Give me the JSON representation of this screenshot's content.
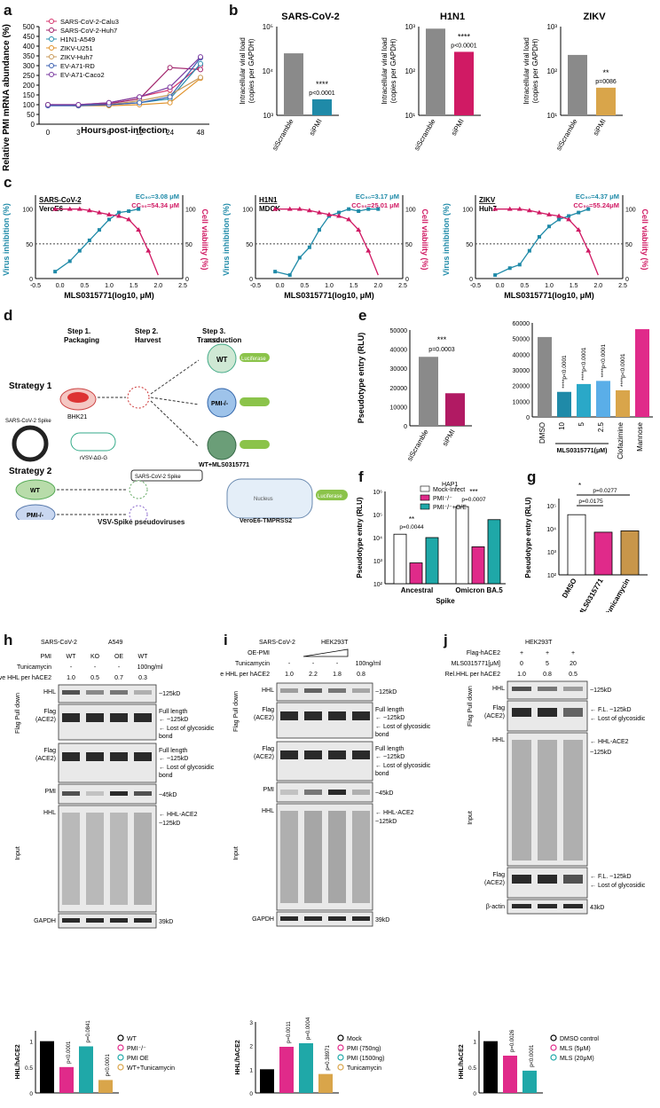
{
  "panels": {
    "a": {
      "label": "a",
      "ylabel": "Relative PMI mRNA abundance (%)",
      "xlabel": "Hours post-infection",
      "xticks": [
        "0",
        "3",
        "6",
        "12",
        "24",
        "48"
      ],
      "yticks": [
        "0",
        "50",
        "100",
        "150",
        "200",
        "250",
        "300",
        "350",
        "400",
        "450",
        "500"
      ],
      "legend": [
        "SARS-CoV-2-Calu3",
        "SARS-CoV-2-Huh7",
        "H1N1-A549",
        "ZIKV-U251",
        "ZIKV-Huh7",
        "EV-A71-RD",
        "EV-A71-Caco2"
      ]
    },
    "b": {
      "label": "b",
      "charts": [
        {
          "title": "SARS-CoV-2",
          "ylabel1": "Intracellular viral load",
          "ylabel2": "(copies per GAPDH)",
          "yticks": [
            "10³",
            "10⁴",
            "10⁵"
          ],
          "cats": [
            "siScramble",
            "siPMI"
          ],
          "stars": "****",
          "p": "p<0.0001"
        },
        {
          "title": "H1N1",
          "ylabel1": "Intracellular viral load",
          "ylabel2": "(copies per GAPDH)",
          "yticks": [
            "10¹",
            "10²",
            "10³"
          ],
          "cats": [
            "siScramble",
            "siPMI"
          ],
          "stars": "****",
          "p": "p<0.0001"
        },
        {
          "title": "ZIKV",
          "ylabel1": "Intracellular viral load",
          "ylabel2": "(copies per GAPDH)",
          "yticks": [
            "10¹",
            "10²",
            "10³"
          ],
          "cats": [
            "siScramble",
            "siPMI"
          ],
          "stars": "**",
          "p": "p=0086"
        }
      ]
    },
    "c": {
      "label": "c",
      "xlabel": "MLS0315771(log10, μM)",
      "yleft": "Virus inhibition (%)",
      "yright": "Cell viability (%)",
      "xticks": [
        "-0.5",
        "0.0",
        "0.5",
        "1.0",
        "1.5",
        "2.0",
        "2.5"
      ],
      "yticks": [
        "0",
        "50",
        "100"
      ],
      "charts": [
        {
          "virus": "SARS-CoV-2",
          "cell": "VeroE6",
          "ec": "EC₅₀=3.08 μM",
          "cc": "CC₅₀=54.34 μM"
        },
        {
          "virus": "H1N1",
          "cell": "MDCK",
          "ec": "EC₅₀=3.17 μM",
          "cc": "CC₅₀=25.01 μM"
        },
        {
          "virus": "ZIKV",
          "cell": "Huh7",
          "ec": "EC₅₀=4.37 μM",
          "cc": "CC₅₀=55.24μM"
        }
      ]
    },
    "d": {
      "label": "d",
      "step1": "Step 1.",
      "step1b": "Packaging",
      "step2": "Step 2.",
      "step2b": "Harvest",
      "step3": "Step 3.",
      "step3b": "Transduction",
      "strategy1": "Strategy 1",
      "strategy2": "Strategy 2",
      "bhk": "BHK21",
      "spike": "SARS-CoV-2 Spike",
      "rvsv": "rVSV-ΔG-G",
      "ace2": "ACE2",
      "luc": "Luciferase",
      "wt": "WT",
      "pmi": "PMI-/-",
      "wtmls": "WT+MLS0315771",
      "spike2": "SARS-CoV-2 Spike",
      "vsv": "VSV-Spike pseudoviruses",
      "nucleus": "Nucleus",
      "vero": "VeroE6-TMPRSS2"
    },
    "e": {
      "label": "e",
      "ylabel": "Pseudotype entry (RLU)",
      "yticks1": [
        "0",
        "10000",
        "20000",
        "30000",
        "40000",
        "50000"
      ],
      "cats1": [
        "siScramble",
        "siPMI"
      ],
      "stars1": "***",
      "p1": "p=0.0003",
      "yticks2": [
        "0",
        "10000",
        "20000",
        "30000",
        "40000",
        "50000",
        "60000"
      ],
      "cats2": [
        "DMSO",
        "10",
        "5",
        "2.5",
        "Clofazimine",
        "Mannose"
      ],
      "group": "MLS0315771(μM)",
      "annots": [
        "****p<0.0001",
        "****p<0.0001",
        "****p<0.0001",
        "****p<0.0001"
      ]
    },
    "f": {
      "label": "f",
      "ylabel": "Pseudotype entry (RLU)",
      "xlabel": "Spike",
      "yticks": [
        "10²",
        "10³",
        "10⁴",
        "10⁵",
        "10⁶"
      ],
      "cats": [
        "Ancestral",
        "Omicron BA.5"
      ],
      "legend_title": "HAP1",
      "legend": [
        "Mock-Infect",
        "PMI⁻/⁻",
        "PMI⁻/⁻+O/E"
      ],
      "p1": "p=0.0044",
      "s1": "**",
      "p2": "p=0.0007",
      "s2": "***"
    },
    "g": {
      "label": "g",
      "ylabel": "Pseudotype entry (RLU)",
      "yticks": [
        "10²",
        "10³",
        "10⁴",
        "10⁵"
      ],
      "cats": [
        "DMSO",
        "MLS0315771",
        "Tunicamycin"
      ],
      "p1": "p=0.0175",
      "p2": "p=0.0277",
      "s": "*"
    },
    "h": {
      "label": "h",
      "virus": "SARS-CoV-2",
      "cellline": "A549",
      "row_pmi": "PMI",
      "row_tun": "Tunicamycin",
      "row_rel": "Relative HHL per hACE2",
      "cols_pmi": [
        "WT",
        "KO",
        "OE",
        "WT"
      ],
      "cols_tun": [
        "-",
        "-",
        "-",
        "100ng/ml"
      ],
      "rel": [
        "1.0",
        "0.5",
        "0.7",
        "0.3"
      ],
      "pulldown": "Flag Pull down",
      "input": "Input",
      "hhl": "HHL",
      "flag": "Flag (ACE2)",
      "pmi": "PMI",
      "gapdh": "GAPDH",
      "kd125": "~125kD",
      "full": "Full length",
      "lost1": "Lost of glycosidic",
      "bond": "bond",
      "kd45": "~45kD",
      "hhlace2": "HHL-ACE2",
      "kd39": "39kD",
      "bar_ylabel": "HHL/hACE2",
      "bar_legend": [
        "WT",
        "PMI⁻/⁻",
        "PMI OE",
        "WT+Tunicamycin"
      ],
      "bar_annots": [
        "p<0.0001",
        "p=0.0841",
        "p<0.0001"
      ]
    },
    "i": {
      "label": "i",
      "virus": "SARS-CoV-2",
      "cellline": "HEK293T",
      "row_oe": "OE-PMI",
      "row_tun": "Tunicamycin",
      "row_rel": "Relative HHL per hACE2",
      "cols_tun": [
        "-",
        "-",
        "-",
        "100ng/ml"
      ],
      "rel": [
        "1.0",
        "2.2",
        "1.8",
        "0.8"
      ],
      "pulldown": "Flag Pull down",
      "input": "Input",
      "hhl": "HHL",
      "flag": "Flag (ACE2)",
      "pmi": "PMI",
      "gapdh": "GAPDH",
      "kd125": "~125kD",
      "full": "Full length",
      "lost1": "Lost of glycosidic",
      "bond": "bond",
      "kd45": "~45kD",
      "hhlace2": "HHL-ACE2",
      "kd39": "39kD",
      "bar_ylabel": "HHL/hACE2",
      "bar_legend": [
        "Mock",
        "PMI (750ng)",
        "PMI (1500ng)",
        "Tunicamycin"
      ],
      "bar_annots": [
        "p=0.0011",
        "p=0.0004",
        "p=0.38971"
      ]
    },
    "j": {
      "label": "j",
      "cellline": "HEK293T",
      "row_flag": "Flag-hACE2",
      "row_mls": "MLS0315771[μM]",
      "row_rel": "Rel.HHL per hACE2",
      "cols_flag": [
        "+",
        "+",
        "+"
      ],
      "cols_mls": [
        "0",
        "5",
        "20"
      ],
      "rel": [
        "1.0",
        "0.8",
        "0.5"
      ],
      "pulldown": "Flag Pull down",
      "input": "Input",
      "hhl": "HHL",
      "flag": "Flag (ACE2)",
      "actin": "β-actin",
      "kd125": "~125kD",
      "fl": "F.L. ~125kD",
      "lost1": "Lost of glycosidic",
      "hhlace2": "HHL-ACE2",
      "kd43": "43kD",
      "bar_ylabel": "HHL/hACE2",
      "bar_legend": [
        "DMSO control",
        "MLS (5μM)",
        "MLS (20μM)"
      ],
      "bar_annots": [
        "p=0.0026",
        "p<0.0001"
      ]
    }
  },
  "chart_data": [
    {
      "type": "line",
      "id": "a",
      "x": [
        0,
        3,
        6,
        12,
        24,
        48
      ],
      "series": [
        {
          "name": "SARS-CoV-2-Calu3",
          "values": [
            100,
            100,
            110,
            140,
            175,
            300
          ]
        },
        {
          "name": "SARS-CoV-2-Huh7",
          "values": [
            100,
            95,
            105,
            130,
            290,
            280
          ]
        },
        {
          "name": "H1N1-A549",
          "values": [
            100,
            98,
            100,
            110,
            130,
            310
          ]
        },
        {
          "name": "ZIKV-U251",
          "values": [
            100,
            95,
            95,
            100,
            110,
            235
          ]
        },
        {
          "name": "ZIKV-Huh7",
          "values": [
            100,
            95,
            100,
            120,
            150,
            240
          ]
        },
        {
          "name": "EV-A71-RD",
          "values": [
            95,
            95,
            100,
            110,
            140,
            340
          ]
        },
        {
          "name": "EV-A71-Caco2",
          "values": [
            100,
            100,
            110,
            140,
            190,
            345
          ]
        }
      ],
      "ylim": [
        0,
        500
      ]
    },
    {
      "type": "bar",
      "id": "b1",
      "categories": [
        "siScramble",
        "siPMI"
      ],
      "values": [
        25000,
        2300
      ],
      "log": true
    },
    {
      "type": "bar",
      "id": "b2",
      "categories": [
        "siScramble",
        "siPMI"
      ],
      "values": [
        900,
        270
      ],
      "log": true
    },
    {
      "type": "bar",
      "id": "b3",
      "categories": [
        "siScramble",
        "siPMI"
      ],
      "values": [
        230,
        42
      ],
      "log": true
    },
    {
      "type": "scatter",
      "id": "c",
      "x": [
        -0.1,
        0.2,
        0.4,
        0.6,
        0.8,
        1.0,
        1.2,
        1.4,
        1.6,
        1.8,
        2.0
      ],
      "series": [
        {
          "name": "SARS-CoV-2 inhibition",
          "values": [
            10,
            25,
            40,
            55,
            70,
            85,
            95,
            97,
            100,
            null,
            null
          ]
        },
        {
          "name": "H1N1 inhibition",
          "values": [
            10,
            5,
            30,
            45,
            70,
            90,
            95,
            100,
            97,
            100,
            100
          ]
        },
        {
          "name": "ZIKV inhibition",
          "values": [
            5,
            15,
            20,
            40,
            60,
            75,
            85,
            90,
            95,
            100,
            null
          ]
        }
      ]
    },
    {
      "type": "bar",
      "id": "e1",
      "categories": [
        "siScramble",
        "siPMI"
      ],
      "values": [
        36000,
        17000
      ],
      "ylim": [
        0,
        50000
      ]
    },
    {
      "type": "bar",
      "id": "e2",
      "categories": [
        "DMSO",
        "10",
        "5",
        "2.5",
        "Clofazimine",
        "Mannose"
      ],
      "values": [
        51000,
        16000,
        21000,
        23000,
        17000,
        56000
      ],
      "ylim": [
        0,
        60000
      ]
    },
    {
      "type": "bar",
      "id": "f",
      "categories": [
        "Ancestral",
        "Omicron BA.5"
      ],
      "series": [
        {
          "name": "Mock-Infect",
          "values": [
            14000,
            220000
          ]
        },
        {
          "name": "PMI⁻/⁻",
          "values": [
            800,
            4000
          ]
        },
        {
          "name": "PMI⁻/⁻+O/E",
          "values": [
            10000,
            60000
          ]
        }
      ],
      "log": true
    },
    {
      "type": "bar",
      "id": "g",
      "categories": [
        "DMSO",
        "MLS0315771",
        "Tunicamycin"
      ],
      "values": [
        40000,
        7000,
        8000
      ],
      "log": true
    },
    {
      "type": "bar",
      "id": "h",
      "categories": [
        "WT",
        "PMI⁻/⁻",
        "PMI OE",
        "WT+Tunicamycin"
      ],
      "values": [
        1.0,
        0.5,
        0.9,
        0.25
      ],
      "ylim": [
        0,
        1.2
      ]
    },
    {
      "type": "bar",
      "id": "i",
      "categories": [
        "Mock",
        "PMI (750ng)",
        "PMI (1500ng)",
        "Tunicamycin"
      ],
      "values": [
        1.0,
        1.95,
        2.1,
        0.8
      ],
      "ylim": [
        0,
        3
      ]
    },
    {
      "type": "bar",
      "id": "j",
      "categories": [
        "DMSO control",
        "MLS (5μM)",
        "MLS (20μM)"
      ],
      "values": [
        1.0,
        0.72,
        0.43
      ],
      "ylim": [
        0,
        1.2
      ]
    }
  ]
}
